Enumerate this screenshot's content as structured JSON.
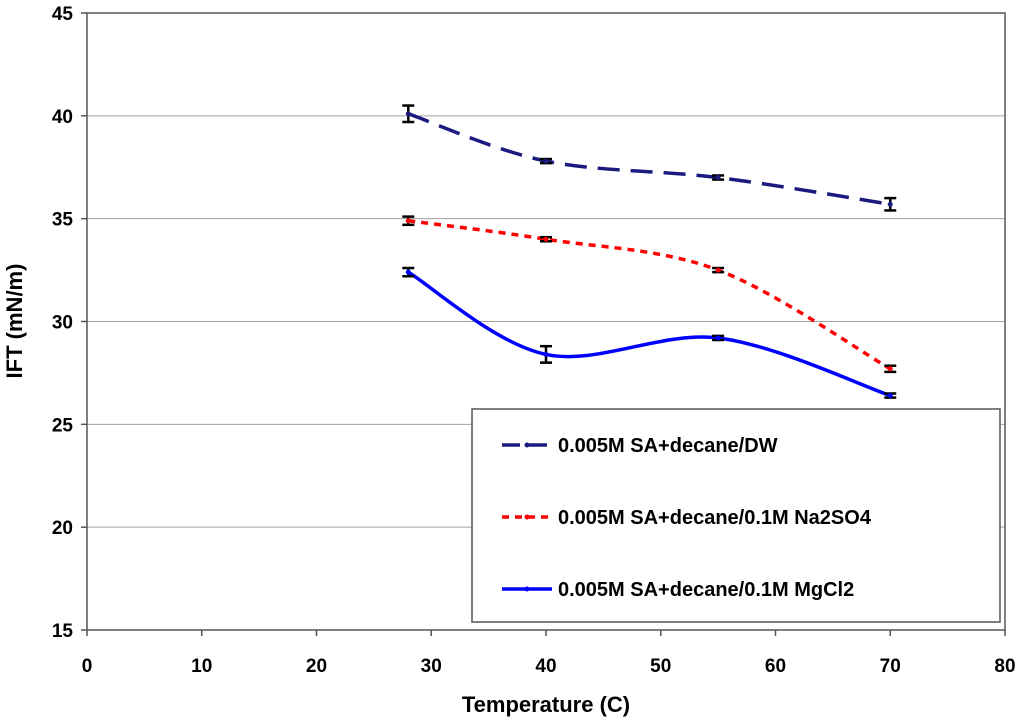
{
  "chart_data": {
    "type": "line",
    "title": "",
    "xlabel": "Temperature (C)",
    "ylabel": "IFT (mN/m)",
    "xlim": [
      0,
      80
    ],
    "ylim": [
      15,
      45
    ],
    "xticks": [
      0,
      10,
      20,
      30,
      40,
      50,
      60,
      70,
      80
    ],
    "yticks": [
      15,
      20,
      25,
      30,
      35,
      40,
      45
    ],
    "grid": "horizontal",
    "legend_position": "lower-right",
    "x": [
      28,
      40,
      55,
      70
    ],
    "series": [
      {
        "name": "0.005M SA+decane/DW",
        "color": "#1a1a80",
        "style": "dashed",
        "values": [
          40.1,
          37.8,
          37.0,
          35.7
        ],
        "errors": [
          0.4,
          0.1,
          0.1,
          0.3
        ]
      },
      {
        "name": "0.005M SA+decane/0.1M Na2SO4",
        "color": "#ff0000",
        "style": "dotted",
        "values": [
          34.9,
          34.0,
          32.5,
          27.7
        ],
        "errors": [
          0.2,
          0.1,
          0.1,
          0.15
        ]
      },
      {
        "name": "0.005M SA+decane/0.1M MgCl2",
        "color": "#0000ff",
        "style": "solid",
        "values": [
          32.4,
          28.4,
          29.2,
          26.4
        ],
        "errors": [
          0.2,
          0.4,
          0.1,
          0.1
        ]
      }
    ]
  }
}
